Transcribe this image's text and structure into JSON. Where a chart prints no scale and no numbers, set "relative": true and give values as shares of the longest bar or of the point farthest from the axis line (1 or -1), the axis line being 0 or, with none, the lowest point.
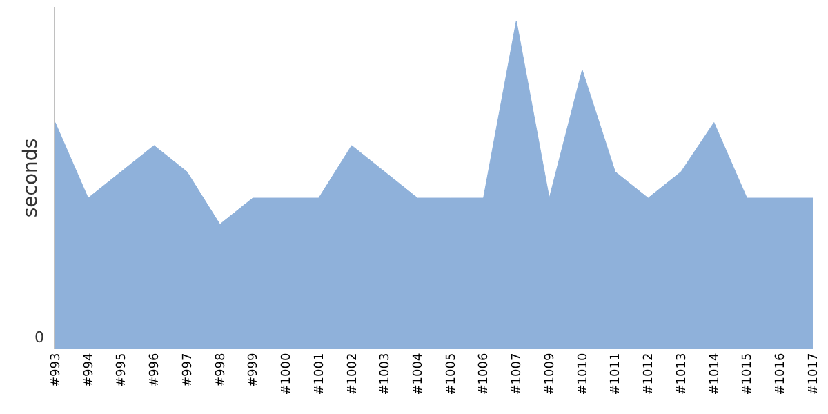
{
  "chart_data": {
    "type": "area",
    "relative": true,
    "ylabel": "seconds",
    "categories": [
      "#993",
      "#994",
      "#995",
      "#996",
      "#997",
      "#998",
      "#999",
      "#1000",
      "#1001",
      "#1002",
      "#1003",
      "#1004",
      "#1005",
      "#1006",
      "#1007",
      "#1009",
      "#1010",
      "#1011",
      "#1012",
      "#1013",
      "#1014",
      "#1015",
      "#1016",
      "#1017"
    ],
    "series": [
      {
        "color": "#8fb1da",
        "values": [
          0.69,
          0.46,
          0.54,
          0.62,
          0.54,
          0.38,
          0.46,
          0.46,
          0.46,
          0.62,
          0.54,
          0.46,
          0.46,
          0.46,
          1,
          0.46,
          0.85,
          0.54,
          0.46,
          0.54,
          0.69,
          0.46,
          0.46,
          0.46
        ]
      }
    ],
    "annotations": [
      "0"
    ]
  }
}
